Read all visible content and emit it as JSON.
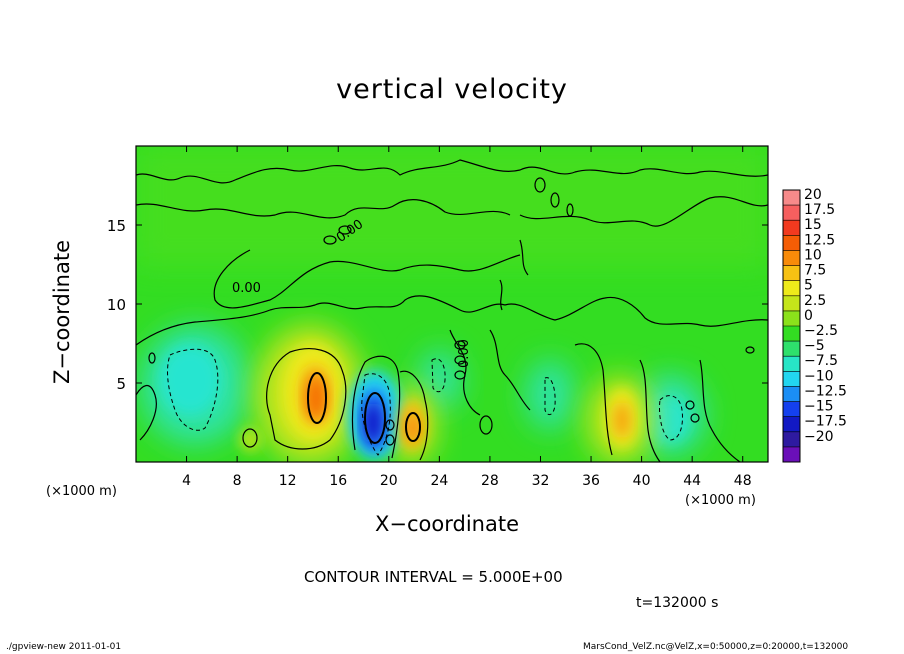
{
  "footer": {
    "left": "./gpview-new  2011-01-01",
    "right": "MarsCond_VelZ.nc@VelZ,x=0:50000,z=0:20000,t=132000"
  },
  "annotations": {
    "contour_interval": "CONTOUR INTERVAL = 5.000E+00",
    "time": "t=132000 s",
    "x_unit_left": "(×1000 m)",
    "x_unit_right": "(×1000 m)",
    "contour_labels": [
      "0.00",
      "0.00",
      "0.00"
    ]
  },
  "colors": {
    "background_field": "#33dd22",
    "contour_line": "#000000"
  },
  "chart_data": {
    "type": "heatmap",
    "title": "vertical velocity",
    "xlabel": "X−coordinate",
    "ylabel": "Z−coordinate",
    "xlim": [
      0,
      50
    ],
    "ylim": [
      0,
      20
    ],
    "xticks": [
      4,
      8,
      12,
      16,
      20,
      24,
      28,
      32,
      36,
      40,
      44,
      48
    ],
    "yticks": [
      5,
      10,
      15
    ],
    "colorbar": {
      "labels": [
        "20",
        "17.5",
        "15",
        "12.5",
        "10",
        "7.5",
        "5",
        "2.5",
        "0",
        "−2.5",
        "−5",
        "−7.5",
        "−10",
        "−12.5",
        "−15",
        "−17.5",
        "−20"
      ],
      "colors": [
        "#f78a8a",
        "#f65f5f",
        "#f23a1f",
        "#f55d05",
        "#f88b09",
        "#f7c113",
        "#eeea1a",
        "#c5e51a",
        "#8be11b",
        "#33dd22",
        "#2ee06c",
        "#27e5c6",
        "#22d6f0",
        "#1b8ef5",
        "#1440ee",
        "#1219c4",
        "#2e1aa0",
        "#6a0fb8"
      ]
    },
    "features": [
      {
        "kind": "updraft",
        "x": 14,
        "z": 4.8,
        "peak": 12.5
      },
      {
        "kind": "downdraft",
        "x": 18.8,
        "z": 2.5,
        "peak": -15
      },
      {
        "kind": "updraft",
        "x": 22,
        "z": 2.3,
        "peak": 10
      },
      {
        "kind": "updraft",
        "x": 38.3,
        "z": 2.8,
        "peak": 10
      },
      {
        "kind": "downdraft",
        "x": 5,
        "z": 5,
        "peak": -7.5
      },
      {
        "kind": "downdraft",
        "x": 42,
        "z": 2.5,
        "peak": -7.5
      }
    ]
  }
}
